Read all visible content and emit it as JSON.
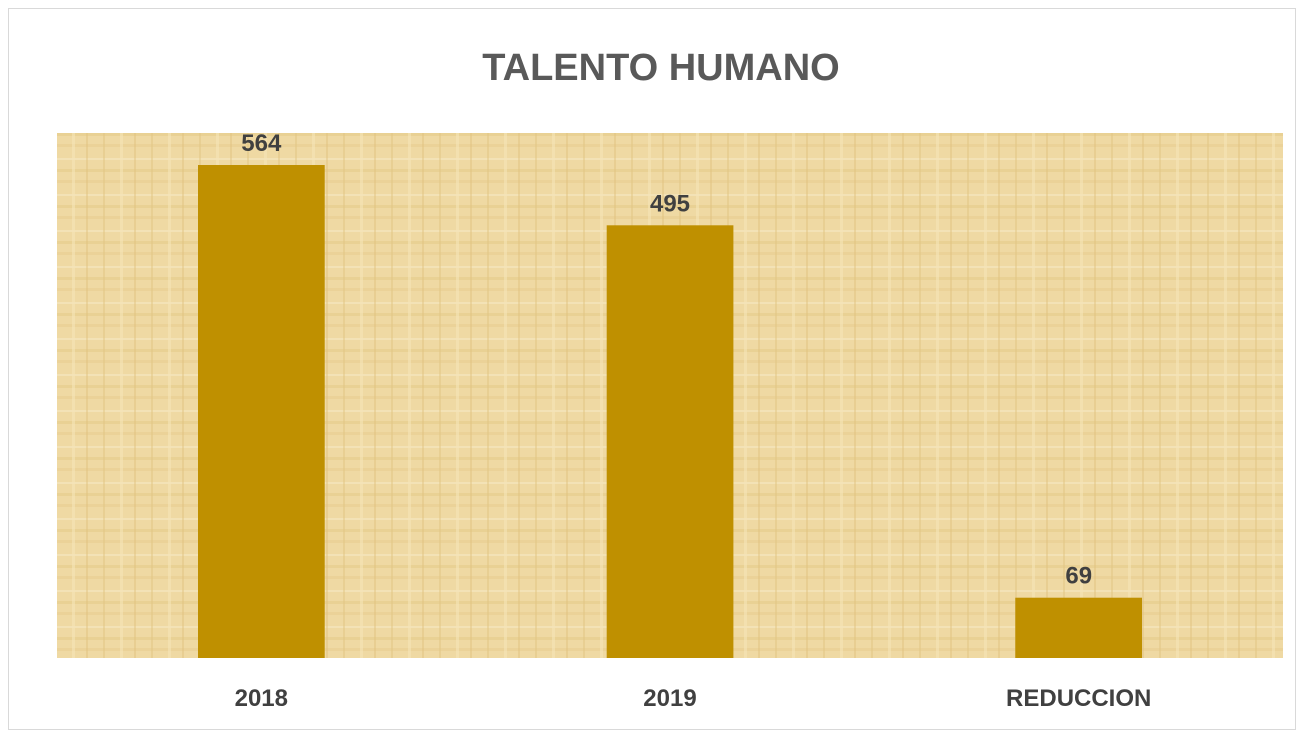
{
  "chart_data": {
    "type": "bar",
    "title": "TALENTO HUMANO",
    "categories": [
      "2018",
      "2019",
      "REDUCCION"
    ],
    "values": [
      564,
      495,
      69
    ],
    "data_labels": [
      "564",
      "495",
      "69"
    ],
    "xlabel": "",
    "ylabel": "",
    "ylim": [
      0,
      564
    ],
    "grid": false,
    "legend": "none",
    "colors": {
      "bar": "#BF9000",
      "plot_background": "#EFD9A3",
      "title": "#595959",
      "labels": "#404040"
    }
  }
}
